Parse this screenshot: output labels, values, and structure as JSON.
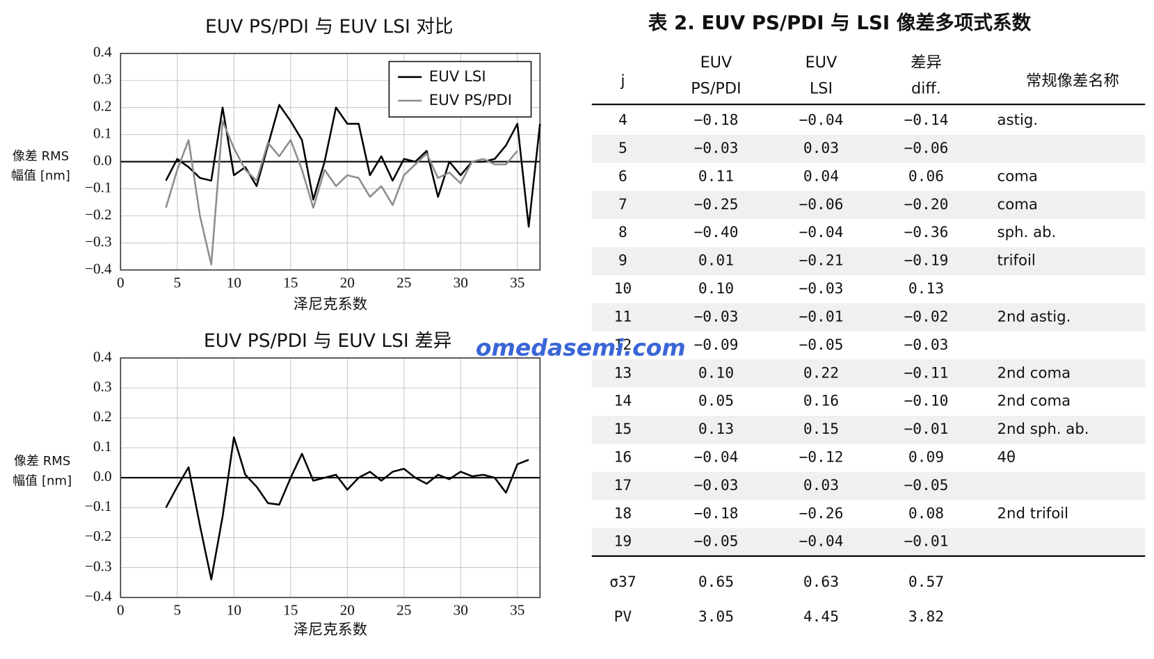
{
  "chart_data": [
    {
      "type": "line",
      "title": "EUV PS/PDI 与 EUV LSI 对比",
      "xlabel": "泽尼克系数",
      "ylabel": [
        "像差 RMS",
        "幅值 [nm]"
      ],
      "x": [
        4,
        5,
        6,
        7,
        8,
        9,
        10,
        11,
        12,
        13,
        14,
        15,
        16,
        17,
        18,
        19,
        20,
        21,
        22,
        23,
        24,
        25,
        26,
        27,
        28,
        29,
        30,
        31,
        32,
        33,
        34,
        35,
        36,
        37
      ],
      "series": [
        {
          "name": "EUV LSI",
          "color": "#000000",
          "values": [
            -0.07,
            0.01,
            -0.02,
            -0.06,
            -0.07,
            0.2,
            -0.05,
            -0.02,
            -0.09,
            0.06,
            0.21,
            0.15,
            0.08,
            -0.14,
            0.0,
            0.2,
            0.14,
            0.14,
            -0.05,
            0.02,
            -0.07,
            0.01,
            0.0,
            0.04,
            -0.13,
            0.0,
            -0.05,
            0.0,
            0.0,
            0.01,
            0.06,
            0.14,
            -0.24,
            0.14
          ]
        },
        {
          "name": "EUV PS/PDI",
          "color": "#8c8c8c",
          "values": [
            -0.17,
            -0.03,
            0.08,
            -0.2,
            -0.38,
            0.15,
            0.05,
            -0.03,
            -0.07,
            0.07,
            0.02,
            0.08,
            -0.03,
            -0.17,
            -0.03,
            -0.09,
            -0.05,
            -0.06,
            -0.13,
            -0.09,
            -0.16,
            -0.05,
            -0.01,
            0.03,
            -0.06,
            -0.04,
            -0.08,
            0.0,
            0.01,
            -0.01,
            -0.01,
            0.04,
            null,
            null
          ]
        }
      ],
      "xlim": [
        0,
        37
      ],
      "xticks": [
        0,
        5,
        10,
        15,
        20,
        25,
        30,
        35
      ],
      "ylim": [
        -0.4,
        0.4
      ],
      "yticks": [
        {
          "value": -0.4,
          "label": "−0.4"
        },
        {
          "value": -0.3,
          "label": "−0.3"
        },
        {
          "value": -0.2,
          "label": "−0.2"
        },
        {
          "value": -0.1,
          "label": "−0.1"
        },
        {
          "value": 0,
          "label": "0.0"
        },
        0.1,
        0.2,
        0.3,
        0.4
      ],
      "grid": true,
      "legend": "upper right"
    },
    {
      "type": "line",
      "title": "EUV PS/PDI 与 EUV LSI 差异",
      "xlabel": "泽尼克系数",
      "ylabel": [
        "像差 RMS",
        "幅值 [nm]"
      ],
      "x": [
        4,
        5,
        6,
        7,
        8,
        9,
        10,
        11,
        12,
        13,
        14,
        15,
        16,
        17,
        18,
        19,
        20,
        21,
        22,
        23,
        24,
        25,
        26,
        27,
        28,
        29,
        30,
        31,
        32,
        33,
        34,
        35,
        36
      ],
      "series": [
        {
          "color": "#000000",
          "values": [
            -0.1,
            -0.03,
            0.035,
            -0.16,
            -0.34,
            -0.13,
            0.135,
            0.01,
            -0.03,
            -0.085,
            -0.09,
            0.0,
            0.08,
            -0.01,
            0.0,
            0.01,
            -0.04,
            0.0,
            0.02,
            -0.01,
            0.02,
            0.03,
            0.0,
            -0.02,
            0.01,
            -0.005,
            0.02,
            0.005,
            0.01,
            0.0,
            -0.05,
            0.045,
            0.06
          ]
        }
      ],
      "xlim": [
        0,
        37
      ],
      "xticks": [
        0,
        5,
        10,
        15,
        20,
        25,
        30,
        35
      ],
      "ylim": [
        -0.4,
        0.4
      ],
      "yticks": [
        {
          "value": -0.4,
          "label": "−0.4"
        },
        {
          "value": -0.3,
          "label": "−0.3"
        },
        {
          "value": -0.2,
          "label": "−0.2"
        },
        {
          "value": -0.1,
          "label": "−0.1"
        },
        {
          "value": 0,
          "label": "0.0"
        },
        0.1,
        0.2,
        0.3,
        0.4
      ],
      "grid": true
    }
  ],
  "table": {
    "title": "表 2. EUV PS/PDI 与 LSI 像差多项式系数",
    "header": [
      [
        "j"
      ],
      [
        "EUV",
        "PS/PDI"
      ],
      [
        "EUV",
        "LSI"
      ],
      [
        "差异",
        "diff."
      ],
      [
        "常规像差名称"
      ]
    ],
    "rows": [
      [
        "4",
        "−0.18",
        "−0.04",
        "−0.14",
        "astig."
      ],
      [
        "5",
        "−0.03",
        "0.03",
        "−0.06",
        null
      ],
      [
        "6",
        "0.11",
        "0.04",
        "0.06",
        "coma"
      ],
      [
        "7",
        "−0.25",
        "−0.06",
        "−0.20",
        "coma"
      ],
      [
        "8",
        "−0.40",
        "−0.04",
        "−0.36",
        "sph. ab."
      ],
      [
        "9",
        "0.01",
        "−0.21",
        "−0.19",
        "trifoil"
      ],
      [
        "10",
        "0.10",
        "−0.03",
        "0.13",
        null
      ],
      [
        "11",
        "−0.03",
        "−0.01",
        "−0.02",
        "2nd astig."
      ],
      [
        "12",
        "−0.09",
        "−0.05",
        "−0.03",
        null
      ],
      [
        "13",
        "0.10",
        "0.22",
        "−0.11",
        "2nd coma"
      ],
      [
        "14",
        "0.05",
        "0.16",
        "−0.10",
        "2nd coma"
      ],
      [
        "15",
        "0.13",
        "0.15",
        "−0.01",
        "2nd sph. ab."
      ],
      [
        "16",
        "−0.04",
        "−0.12",
        "0.09",
        "4θ"
      ],
      [
        "17",
        "−0.03",
        "0.03",
        "−0.05",
        null
      ],
      [
        "18",
        "−0.18",
        "−0.26",
        "0.08",
        "2nd trifoil"
      ],
      [
        "19",
        "−0.05",
        "−0.04",
        "−0.01",
        null
      ]
    ],
    "footer": [
      [
        "σ37",
        "0.65",
        "0.63",
        "0.57"
      ],
      [
        "PV",
        "3.05",
        "4.45",
        "3.82"
      ]
    ]
  },
  "watermark": "omedasemi.com"
}
